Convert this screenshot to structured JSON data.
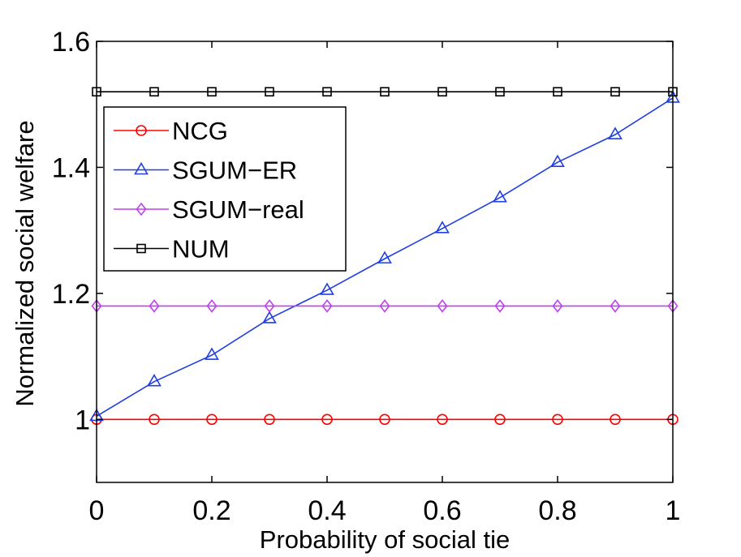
{
  "chart_data": {
    "type": "line",
    "title": "",
    "xlabel": "Probability of social tie",
    "ylabel": "Normalized social welfare",
    "xlim": [
      0,
      1
    ],
    "ylim": [
      0.9,
      1.6
    ],
    "x": [
      0,
      0.1,
      0.2,
      0.3,
      0.4,
      0.5,
      0.6,
      0.7,
      0.8,
      0.9,
      1
    ],
    "xticks": [
      0,
      0.2,
      0.4,
      0.6,
      0.8,
      1
    ],
    "xtick_labels": [
      "0",
      "0.2",
      "0.4",
      "0.6",
      "0.8",
      "1"
    ],
    "yticks": [
      1,
      1.2,
      1.4,
      1.6
    ],
    "ytick_labels": [
      "1",
      "1.2",
      "1.4",
      "1.6"
    ],
    "grid": false,
    "legend_position": "top-left",
    "series": [
      {
        "name": "NCG",
        "color": "#ff0000",
        "marker": "circle",
        "values": [
          1.0,
          1.0,
          1.0,
          1.0,
          1.0,
          1.0,
          1.0,
          1.0,
          1.0,
          1.0,
          1.0
        ]
      },
      {
        "name": "SGUM−ER",
        "color": "#1f3fe0",
        "marker": "triangle",
        "values": [
          1.005,
          1.06,
          1.102,
          1.16,
          1.205,
          1.255,
          1.303,
          1.352,
          1.408,
          1.452,
          1.51
        ]
      },
      {
        "name": "SGUM−real",
        "color": "#bf40f0",
        "marker": "diamond",
        "values": [
          1.18,
          1.18,
          1.18,
          1.18,
          1.18,
          1.18,
          1.18,
          1.18,
          1.18,
          1.18,
          1.18
        ]
      },
      {
        "name": "NUM",
        "color": "#000000",
        "marker": "square",
        "values": [
          1.52,
          1.52,
          1.52,
          1.52,
          1.52,
          1.52,
          1.52,
          1.52,
          1.52,
          1.52,
          1.52
        ]
      }
    ]
  }
}
